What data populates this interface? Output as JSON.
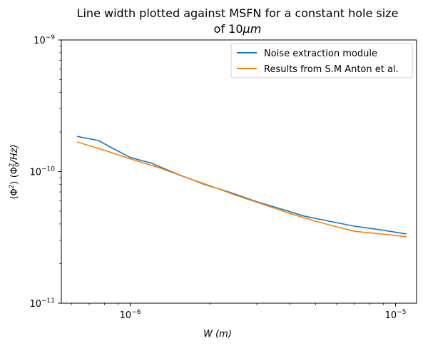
{
  "chart_data": {
    "type": "line",
    "title_line1": "Line width plotted against MSFN for a constant hole size",
    "title_line2_prefix": "of 10",
    "title_line2_unit": "μm",
    "xlabel": {
      "var": "W",
      "unit": "(m)"
    },
    "ylabel": {
      "open": "⟨Φ",
      "sq": "2",
      "mid": "⟩ (Φ",
      "sub": "0",
      "sup": "2",
      "close": "/Hz)"
    },
    "x_scale": "log",
    "y_scale": "log",
    "xlim": [
      5.5e-07,
      1.2e-05
    ],
    "ylim": [
      1e-11,
      1e-09
    ],
    "x_ticks": [
      {
        "value": 1e-06,
        "base": "10",
        "exp": "−6"
      },
      {
        "value": 1e-05,
        "base": "10",
        "exp": "−5"
      }
    ],
    "y_ticks": [
      {
        "value": 1e-11,
        "base": "10",
        "exp": "−11"
      },
      {
        "value": 1e-10,
        "base": "10",
        "exp": "−10"
      },
      {
        "value": 1e-09,
        "base": "10",
        "exp": "−9"
      }
    ],
    "grid": false,
    "legend_position": "top-right",
    "series": [
      {
        "name": "Noise extraction module",
        "color": "#1f77b4",
        "x": [
          6.3e-07,
          7.6e-07,
          8.6e-07,
          1e-06,
          1.2e-06,
          1.5e-06,
          1.9e-06,
          2.4e-06,
          3e-06,
          3.7e-06,
          4.5e-06,
          5.6e-06,
          7e-06,
          8.9e-06,
          1.1e-05
        ],
        "y": [
          1.85e-10,
          1.72e-10,
          1.5e-10,
          1.28e-10,
          1.16e-10,
          9.6e-11,
          8e-11,
          6.9e-11,
          5.9e-11,
          5.2e-11,
          4.6e-11,
          4.2e-11,
          3.85e-11,
          3.6e-11,
          3.35e-11
        ]
      },
      {
        "name": "Results from S.M Anton et al.",
        "color": "#ff7f0e",
        "x": [
          6.3e-07,
          8e-07,
          1e-06,
          1.3e-06,
          1.6e-06,
          2e-06,
          2.5e-06,
          3.2e-06,
          4e-06,
          5e-06,
          6e-06,
          7e-06,
          8.9e-06,
          1.1e-05
        ],
        "y": [
          1.68e-10,
          1.45e-10,
          1.25e-10,
          1.06e-10,
          9.1e-11,
          7.8e-11,
          6.6e-11,
          5.6e-11,
          4.8e-11,
          4.2e-11,
          3.8e-11,
          3.52e-11,
          3.35e-11,
          3.2e-11
        ]
      }
    ]
  }
}
